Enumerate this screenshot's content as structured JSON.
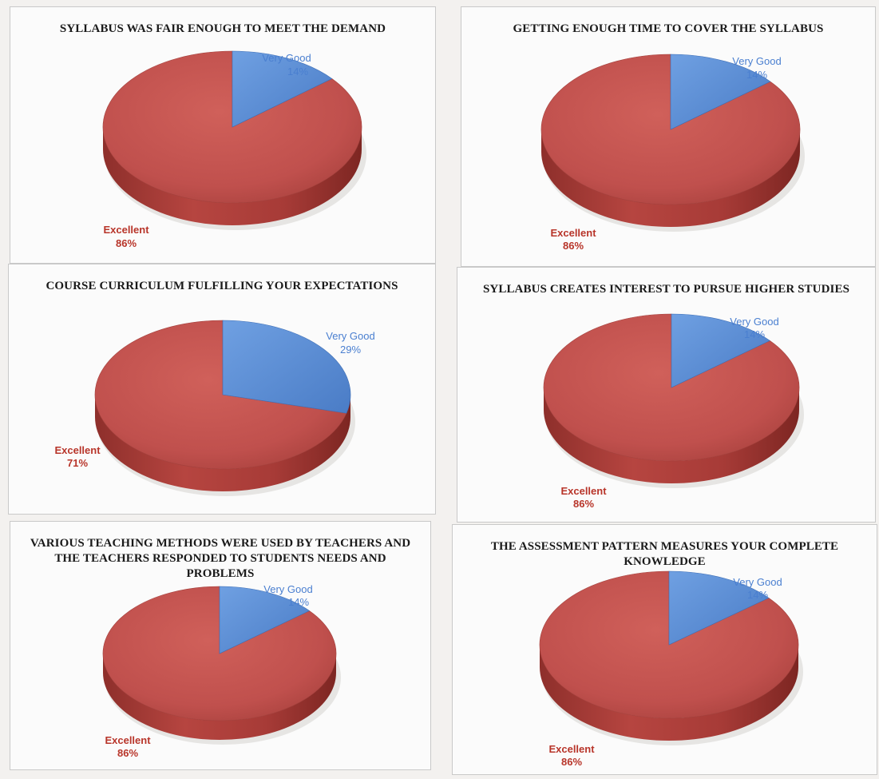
{
  "page": {
    "background": "#f3f1ef"
  },
  "colors": {
    "excellent": "#c0504d",
    "very_good": "#5b8fd6"
  },
  "chart_data": [
    {
      "type": "pie",
      "title": "SYLLABUS WAS FAIR ENOUGH TO MEET THE DEMAND",
      "categories": [
        "Very Good",
        "Excellent"
      ],
      "values": [
        14,
        86
      ],
      "labels": [
        "Very Good\n14%",
        "Excellent\n86%"
      ],
      "legend": "none",
      "style": "3d"
    },
    {
      "type": "pie",
      "title": "GETTING ENOUGH TIME TO COVER THE SYLLABUS",
      "categories": [
        "Very Good",
        "Excellent"
      ],
      "values": [
        14,
        86
      ],
      "legend": "none",
      "style": "3d"
    },
    {
      "type": "pie",
      "title": "COURSE CURRICULUM FULFILLING YOUR EXPECTATIONS",
      "categories": [
        "Very Good",
        "Excellent"
      ],
      "values": [
        29,
        71
      ],
      "legend": "none",
      "style": "3d"
    },
    {
      "type": "pie",
      "title": "SYLLABUS CREATES INTEREST TO PURSUE HIGHER STUDIES",
      "categories": [
        "Very Good",
        "Excellent"
      ],
      "values": [
        14,
        86
      ],
      "legend": "none",
      "style": "3d"
    },
    {
      "type": "pie",
      "title": "VARIOUS TEACHING METHODS WERE USED BY TEACHERS AND THE TEACHERS RESPONDED TO STUDENTS NEEDS AND PROBLEMS",
      "categories": [
        "Very Good",
        "Excellent"
      ],
      "values": [
        14,
        86
      ],
      "legend": "none",
      "style": "3d"
    },
    {
      "type": "pie",
      "title": "THE ASSESSMENT PATTERN MEASURES YOUR COMPLETE KNOWLEDGE",
      "categories": [
        "Very Good",
        "Excellent"
      ],
      "values": [
        14,
        86
      ],
      "legend": "none",
      "style": "3d"
    }
  ]
}
